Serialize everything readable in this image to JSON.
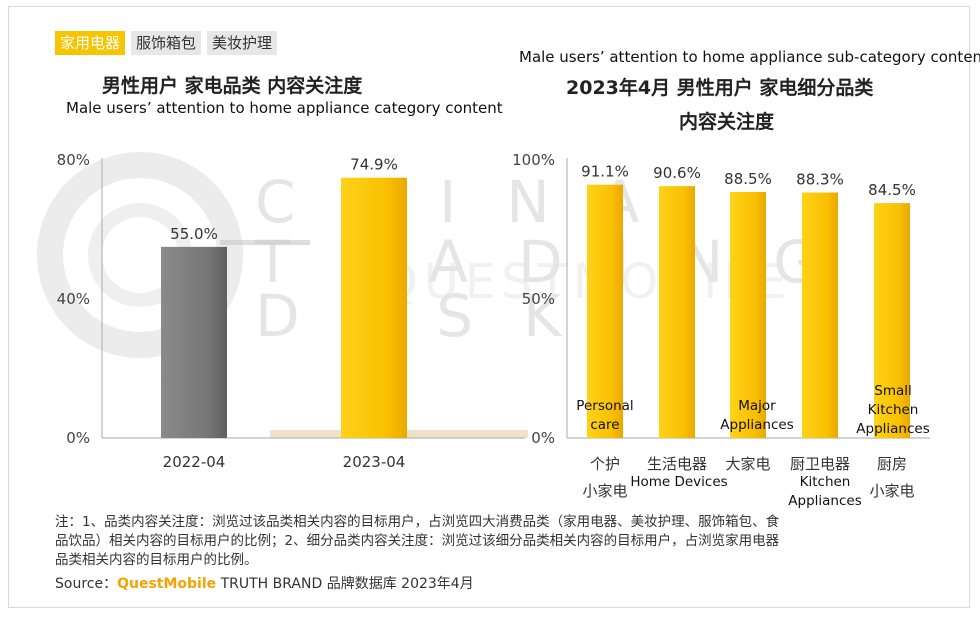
{
  "tabs": [
    {
      "label": "家用电器",
      "active": true
    },
    {
      "label": "服饰箱包",
      "active": false
    },
    {
      "label": "美妆护理",
      "active": false
    }
  ],
  "watermark": {
    "line1": "CHINA",
    "line2": "TRADING",
    "line3": "DESK",
    "brand": "QUESTMOBILE"
  },
  "left_chart": {
    "title_zh": "男性用户 家电品类 内容关注度",
    "title_en": "Male users’ attention to home appliance category content"
  },
  "right_chart": {
    "title_en": "Male users’ attention to home appliance sub-category content",
    "title_zh_line1": "2023年4月 男性用户 家电细分品类",
    "title_zh_line2": "内容关注度"
  },
  "chart_data": [
    {
      "type": "bar",
      "title": "男性用户 家电品类 内容关注度",
      "subtitle": "Male users’ attention to home appliance category content",
      "categories": [
        "2022-04",
        "2023-04"
      ],
      "values": [
        55.0,
        74.9
      ],
      "value_labels": [
        "55.0%",
        "74.9%"
      ],
      "ylim": [
        0,
        80
      ],
      "yticks": [
        0,
        40,
        80
      ],
      "ytick_labels": [
        "0%",
        "40%",
        "80%"
      ],
      "colors": [
        "#7a7a7a",
        "#f9c000"
      ],
      "grid": false
    },
    {
      "type": "bar",
      "title": "2023年4月 男性用户 家电细分品类 内容关注度",
      "subtitle": "Male users’ attention to home appliance sub-category content",
      "categories": [
        "个护小家电",
        "生活电器",
        "大家电",
        "厨卫电器",
        "厨房小家电"
      ],
      "category_lines": [
        [
          "个护",
          "小家电"
        ],
        [
          "生活电器"
        ],
        [
          "大家电"
        ],
        [
          "厨卫电器"
        ],
        [
          "厨房",
          "小家电"
        ]
      ],
      "english_labels": [
        [
          "Personal",
          "care"
        ],
        [
          "Home Devices"
        ],
        [
          "Major",
          "Appliances"
        ],
        [
          "Kitchen",
          "Appliances"
        ],
        [
          "Small",
          "Kitchen",
          "Appliances"
        ]
      ],
      "values": [
        91.1,
        90.6,
        88.5,
        88.3,
        84.5
      ],
      "value_labels": [
        "91.1%",
        "90.6%",
        "88.5%",
        "88.3%",
        "84.5%"
      ],
      "ylim": [
        0,
        100
      ],
      "yticks": [
        0,
        50,
        100
      ],
      "ytick_labels": [
        "0%",
        "50%",
        "100%"
      ],
      "color": "#f9c000",
      "grid": false
    }
  ],
  "footnote": {
    "line1": "注：1、品类内容关注度：浏览过该品类相关内容的目标用户，占浏览四大消费品类（家用电器、美妆护理、服饰箱包、食",
    "line2": "品饮品）相关内容的目标用户的比例；2、细分品类内容关注度：浏览过该细分品类相关内容的目标用户，占浏览家用电器",
    "line3": "品类相关内容的目标用户的比例。"
  },
  "source": {
    "prefix": "Source：",
    "brand": "QuestMobile",
    "rest": " TRUTH BRAND 品牌数据库 2023年4月"
  }
}
